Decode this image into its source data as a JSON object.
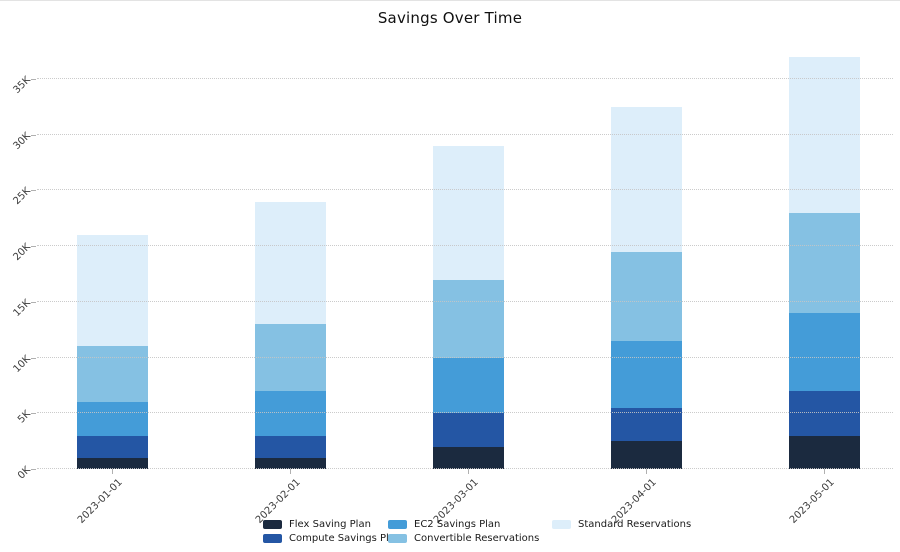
{
  "title": "Savings Over Time",
  "chart_data": {
    "type": "bar",
    "stacked": true,
    "title": "Savings Over Time",
    "xlabel": "",
    "ylabel": "",
    "categories": [
      "2023-01-01",
      "2023-02-01",
      "2023-03-01",
      "2023-04-01",
      "2023-05-01"
    ],
    "series": [
      {
        "name": "Flex Saving Plan",
        "color": "#1b2a3f",
        "values": [
          1000,
          1000,
          2000,
          2500,
          3000
        ]
      },
      {
        "name": "Compute Savings Plan",
        "color": "#2456a4",
        "values": [
          2000,
          2000,
          3000,
          3000,
          4000
        ]
      },
      {
        "name": "EC2 Savings Plan",
        "color": "#449cd8",
        "values": [
          3000,
          4000,
          5000,
          6000,
          7000
        ]
      },
      {
        "name": "Convertible Reservations",
        "color": "#85c1e3",
        "values": [
          5000,
          6000,
          7000,
          8000,
          9000
        ]
      },
      {
        "name": "Standard Reservations",
        "color": "#ddeefa",
        "values": [
          10000,
          11000,
          12000,
          13000,
          14000
        ]
      }
    ],
    "stack_totals": [
      21000,
      24000,
      29000,
      32500,
      37000
    ],
    "y_ticks": [
      {
        "value": 0,
        "label": "0K"
      },
      {
        "value": 5000,
        "label": "5K"
      },
      {
        "value": 10000,
        "label": "10K"
      },
      {
        "value": 15000,
        "label": "15K"
      },
      {
        "value": 20000,
        "label": "20K"
      },
      {
        "value": 25000,
        "label": "25K"
      },
      {
        "value": 30000,
        "label": "30K"
      },
      {
        "value": 35000,
        "label": "35K"
      }
    ],
    "ylim": [
      0,
      38500
    ],
    "grid": "horizontal-dotted",
    "legend_position": "bottom"
  }
}
